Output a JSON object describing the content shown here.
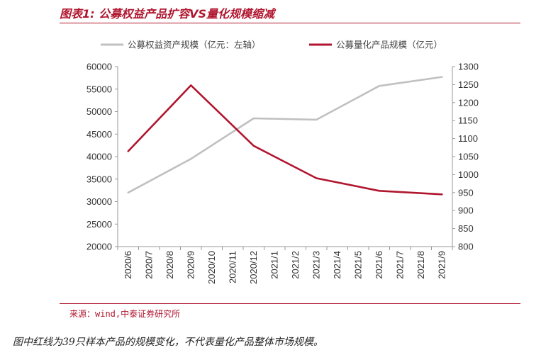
{
  "title": "图表1: 公募权益产品扩容VS量化规模缩减",
  "source": "来源：wind,中泰证券研究所",
  "footnote": "图中红线为39只样本产品的规模变化，不代表量化产品整体市场规模。",
  "colors": {
    "accent": "#b0162f",
    "left_series": "#c0c0c0",
    "right_series": "#b0162f",
    "axis": "#999999"
  },
  "chart_data": {
    "type": "line",
    "title": "图表1: 公募权益产品扩容VS量化规模缩减",
    "xlabel": "",
    "ylabel": "",
    "grid": false,
    "legend_position": "top",
    "categories": [
      "2020/6",
      "2020/7",
      "2020/8",
      "2020/9",
      "2020/10",
      "2020/11",
      "2020/12",
      "2021/1",
      "2021/2",
      "2021/3",
      "2021/4",
      "2021/5",
      "2021/6",
      "2021/7",
      "2021/8",
      "2021/9"
    ],
    "y_left": {
      "min": 20000,
      "max": 60000,
      "step": 5000,
      "ticks": [
        "20000",
        "25000",
        "30000",
        "35000",
        "40000",
        "45000",
        "50000",
        "55000",
        "60000"
      ]
    },
    "y_right": {
      "min": 800,
      "max": 1300,
      "step": 50,
      "ticks": [
        "800",
        "850",
        "900",
        "950",
        "1000",
        "1050",
        "1100",
        "1150",
        "1200",
        "1250",
        "1300"
      ]
    },
    "series": [
      {
        "name": "公募权益资产规模（亿元：左轴）",
        "axis": "left",
        "color": "#c0c0c0",
        "points": [
          [
            "2020/6",
            32000
          ],
          [
            "2020/9",
            39500
          ],
          [
            "2020/12",
            48500
          ],
          [
            "2021/3",
            48200
          ],
          [
            "2021/6",
            55700
          ],
          [
            "2021/9",
            57700
          ]
        ]
      },
      {
        "name": "公募量化产品规模（亿元）",
        "axis": "right",
        "color": "#b0162f",
        "points": [
          [
            "2020/6",
            1065
          ],
          [
            "2020/9",
            1248
          ],
          [
            "2020/12",
            1080
          ],
          [
            "2021/3",
            990
          ],
          [
            "2021/6",
            955
          ],
          [
            "2021/9",
            945
          ]
        ]
      }
    ]
  }
}
